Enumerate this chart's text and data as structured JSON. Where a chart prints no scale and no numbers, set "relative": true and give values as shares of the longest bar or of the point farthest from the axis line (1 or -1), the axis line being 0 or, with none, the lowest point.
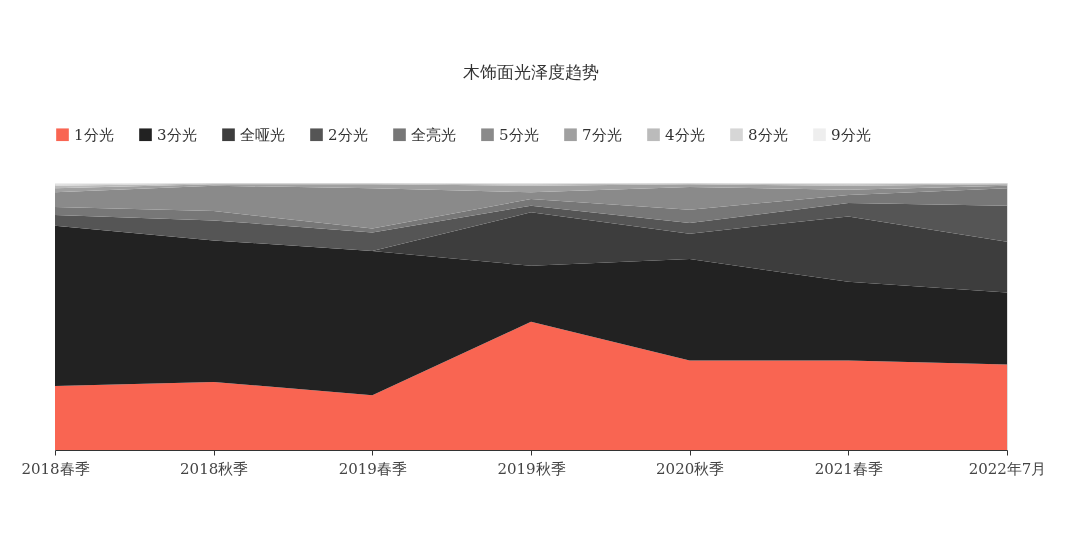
{
  "chart_data": {
    "type": "area",
    "stacked": true,
    "relative": true,
    "title": "木饰面光泽度趋势",
    "legend": "top",
    "grid": false,
    "categories": [
      "2018春季",
      "2018秋季",
      "2019春季",
      "2019秋季",
      "2020秋季",
      "2021春季",
      "2022年7月"
    ],
    "series": [
      {
        "name": "1分光",
        "color": "#f96552",
        "values": [
          0.24,
          0.255,
          0.205,
          0.48,
          0.335,
          0.335,
          0.32
        ]
      },
      {
        "name": "3分光",
        "color": "#222222",
        "values": [
          0.6,
          0.53,
          0.54,
          0.21,
          0.38,
          0.295,
          0.27
        ]
      },
      {
        "name": "全哑光",
        "color": "#3d3d3d",
        "values": [
          0,
          0,
          0,
          0.2,
          0.095,
          0.245,
          0.19
        ]
      },
      {
        "name": "2分光",
        "color": "#555555",
        "values": [
          0.04,
          0.075,
          0.07,
          0.025,
          0.04,
          0.05,
          0.135
        ]
      },
      {
        "name": "全亮光",
        "color": "#777777",
        "values": [
          0.03,
          0.035,
          0.015,
          0.025,
          0.05,
          0.03,
          0.065
        ]
      },
      {
        "name": "5分光",
        "color": "#8a8a8a",
        "values": [
          0.055,
          0.095,
          0.15,
          0.025,
          0.085,
          0.02,
          0.01
        ]
      },
      {
        "name": "7分光",
        "color": "#a0a0a0",
        "values": [
          0.015,
          0.005,
          0.015,
          0.025,
          0.01,
          0.015,
          0.005
        ]
      },
      {
        "name": "4分光",
        "color": "#bbbbbb",
        "values": [
          0.01,
          0.003,
          0.003,
          0.005,
          0.003,
          0.005,
          0.003
        ]
      },
      {
        "name": "8分光",
        "color": "#d6d6d6",
        "values": [
          0.005,
          0.001,
          0.001,
          0.003,
          0.001,
          0.003,
          0.001
        ]
      },
      {
        "name": "9分光",
        "color": "#eeeeee",
        "values": [
          0.005,
          0.001,
          0.001,
          0.002,
          0.001,
          0.002,
          0.001
        ]
      }
    ]
  }
}
